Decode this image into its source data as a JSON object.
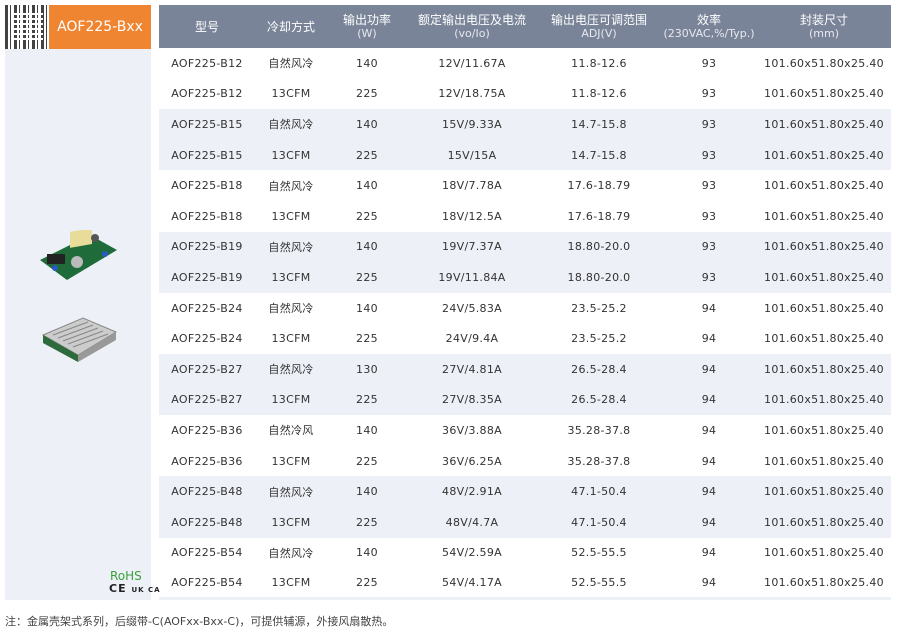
{
  "header": {
    "model": "AOF225-Bxx"
  },
  "certs": {
    "rohs": "RoHS",
    "ce": "CE",
    "ukca": "UK CA"
  },
  "columns": [
    {
      "title": "型号",
      "sub": ""
    },
    {
      "title": "冷却方式",
      "sub": ""
    },
    {
      "title": "输出功率",
      "sub": "(W)"
    },
    {
      "title": "额定输出电压及电流",
      "sub": "(vo/Io)"
    },
    {
      "title": "输出电压可调范围",
      "sub": "ADJ(V)"
    },
    {
      "title": "效率",
      "sub": "(230VAC,%/Typ.)"
    },
    {
      "title": "封装尺寸",
      "sub": "(mm)"
    }
  ],
  "rows": [
    [
      "AOF225-B12",
      "自然风冷",
      "140",
      "12V/11.67A",
      "11.8-12.6",
      "93",
      "101.60x51.80x25.40"
    ],
    [
      "AOF225-B12",
      "13CFM",
      "225",
      "12V/18.75A",
      "11.8-12.6",
      "93",
      "101.60x51.80x25.40"
    ],
    [
      "AOF225-B15",
      "自然风冷",
      "140",
      "15V/9.33A",
      "14.7-15.8",
      "93",
      "101.60x51.80x25.40"
    ],
    [
      "AOF225-B15",
      "13CFM",
      "225",
      "15V/15A",
      "14.7-15.8",
      "93",
      "101.60x51.80x25.40"
    ],
    [
      "AOF225-B18",
      "自然风冷",
      "140",
      "18V/7.78A",
      "17.6-18.79",
      "93",
      "101.60x51.80x25.40"
    ],
    [
      "AOF225-B18",
      "13CFM",
      "225",
      "18V/12.5A",
      "17.6-18.79",
      "93",
      "101.60x51.80x25.40"
    ],
    [
      "AOF225-B19",
      "自然风冷",
      "140",
      "19V/7.37A",
      "18.80-20.0",
      "93",
      "101.60x51.80x25.40"
    ],
    [
      "AOF225-B19",
      "13CFM",
      "225",
      "19V/11.84A",
      "18.80-20.0",
      "93",
      "101.60x51.80x25.40"
    ],
    [
      "AOF225-B24",
      "自然风冷",
      "140",
      "24V/5.83A",
      "23.5-25.2",
      "94",
      "101.60x51.80x25.40"
    ],
    [
      "AOF225-B24",
      "13CFM",
      "225",
      "24V/9.4A",
      "23.5-25.2",
      "94",
      "101.60x51.80x25.40"
    ],
    [
      "AOF225-B27",
      "自然风冷",
      "130",
      "27V/4.81A",
      "26.5-28.4",
      "94",
      "101.60x51.80x25.40"
    ],
    [
      "AOF225-B27",
      "13CFM",
      "225",
      "27V/8.35A",
      "26.5-28.4",
      "94",
      "101.60x51.80x25.40"
    ],
    [
      "AOF225-B36",
      "自然冷风",
      "140",
      "36V/3.88A",
      "35.28-37.8",
      "94",
      "101.60x51.80x25.40"
    ],
    [
      "AOF225-B36",
      "13CFM",
      "225",
      "36V/6.25A",
      "35.28-37.8",
      "94",
      "101.60x51.80x25.40"
    ],
    [
      "AOF225-B48",
      "自然风冷",
      "140",
      "48V/2.91A",
      "47.1-50.4",
      "94",
      "101.60x51.80x25.40"
    ],
    [
      "AOF225-B48",
      "13CFM",
      "225",
      "48V/4.7A",
      "47.1-50.4",
      "94",
      "101.60x51.80x25.40"
    ],
    [
      "AOF225-B54",
      "自然风冷",
      "140",
      "54V/2.59A",
      "52.5-55.5",
      "94",
      "101.60x51.80x25.40"
    ],
    [
      "AOF225-B54",
      "13CFM",
      "225",
      "54V/4.17A",
      "52.5-55.5",
      "94",
      "101.60x51.80x25.40"
    ]
  ],
  "note": "注：金属壳架式系列，后缀带-C(AOFxx-Bxx-C)，可提供辅源，外接风扇散热。"
}
